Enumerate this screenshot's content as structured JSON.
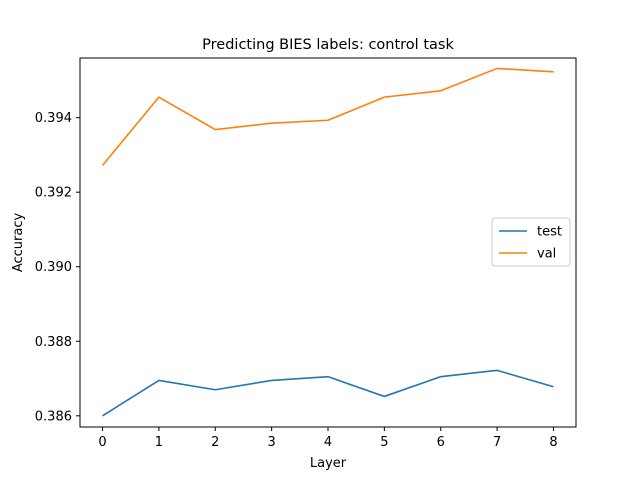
{
  "chart_data": {
    "type": "line",
    "title": "Predicting BIES labels: control task",
    "xlabel": "Layer",
    "ylabel": "Accuracy",
    "x": [
      0,
      1,
      2,
      3,
      4,
      5,
      6,
      7,
      8
    ],
    "xticks": [
      "0",
      "1",
      "2",
      "3",
      "4",
      "5",
      "6",
      "7",
      "8"
    ],
    "yticks": [
      "0.386",
      "0.388",
      "0.390",
      "0.392",
      "0.394"
    ],
    "xlim": [
      -0.4,
      8.4
    ],
    "ylim": [
      0.3857,
      0.3956
    ],
    "grid": false,
    "legend_position": "center-right",
    "series": [
      {
        "name": "test",
        "color": "#1f77b4",
        "values": [
          0.386,
          0.38695,
          0.3867,
          0.38695,
          0.38705,
          0.38652,
          0.38705,
          0.38722,
          0.38678
        ]
      },
      {
        "name": "val",
        "color": "#ff7f0e",
        "values": [
          0.39272,
          0.39455,
          0.39368,
          0.39385,
          0.39393,
          0.39455,
          0.39472,
          0.39532,
          0.39523
        ]
      }
    ]
  }
}
